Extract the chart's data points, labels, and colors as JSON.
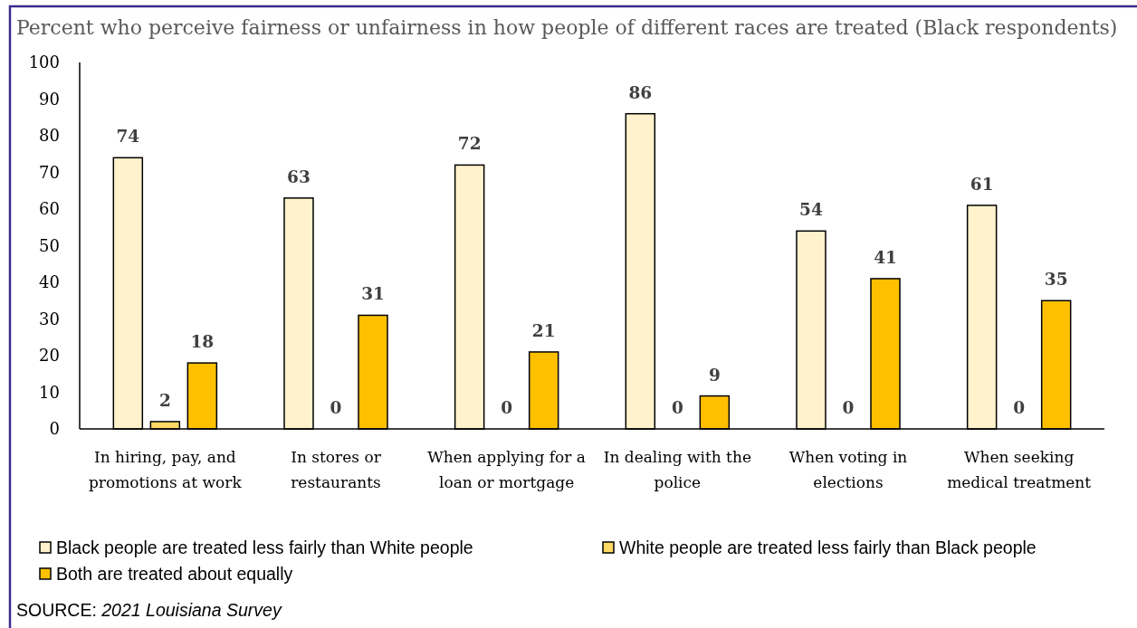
{
  "chart_data": {
    "type": "bar",
    "title": "Percent who perceive fairness or unfairness in how people of different races are treated (Black respondents)",
    "categories": [
      "In hiring, pay, and promotions at work",
      "In stores or restaurants",
      "When applying for a loan or mortgage",
      "In dealing with the police",
      "When voting in elections",
      "When seeking medical treatment"
    ],
    "series": [
      {
        "name": "Black people are treated less fairly than White people",
        "color": "#fff2cc",
        "values": [
          74,
          63,
          72,
          86,
          54,
          61
        ]
      },
      {
        "name": "White people are treated less fairly than Black people",
        "color": "#ffd966",
        "values": [
          2,
          0,
          0,
          0,
          0,
          0
        ]
      },
      {
        "name": "Both are treated about equally",
        "color": "#ffc000",
        "values": [
          18,
          31,
          21,
          9,
          41,
          35
        ]
      }
    ],
    "ylim": [
      0,
      100
    ],
    "yticks": [
      0,
      10,
      20,
      30,
      40,
      50,
      60,
      70,
      80,
      90,
      100
    ],
    "data_labels": true,
    "legend": "bottom",
    "annotations": [
      "SOURCE: 2021 Louisiana Survey"
    ]
  }
}
